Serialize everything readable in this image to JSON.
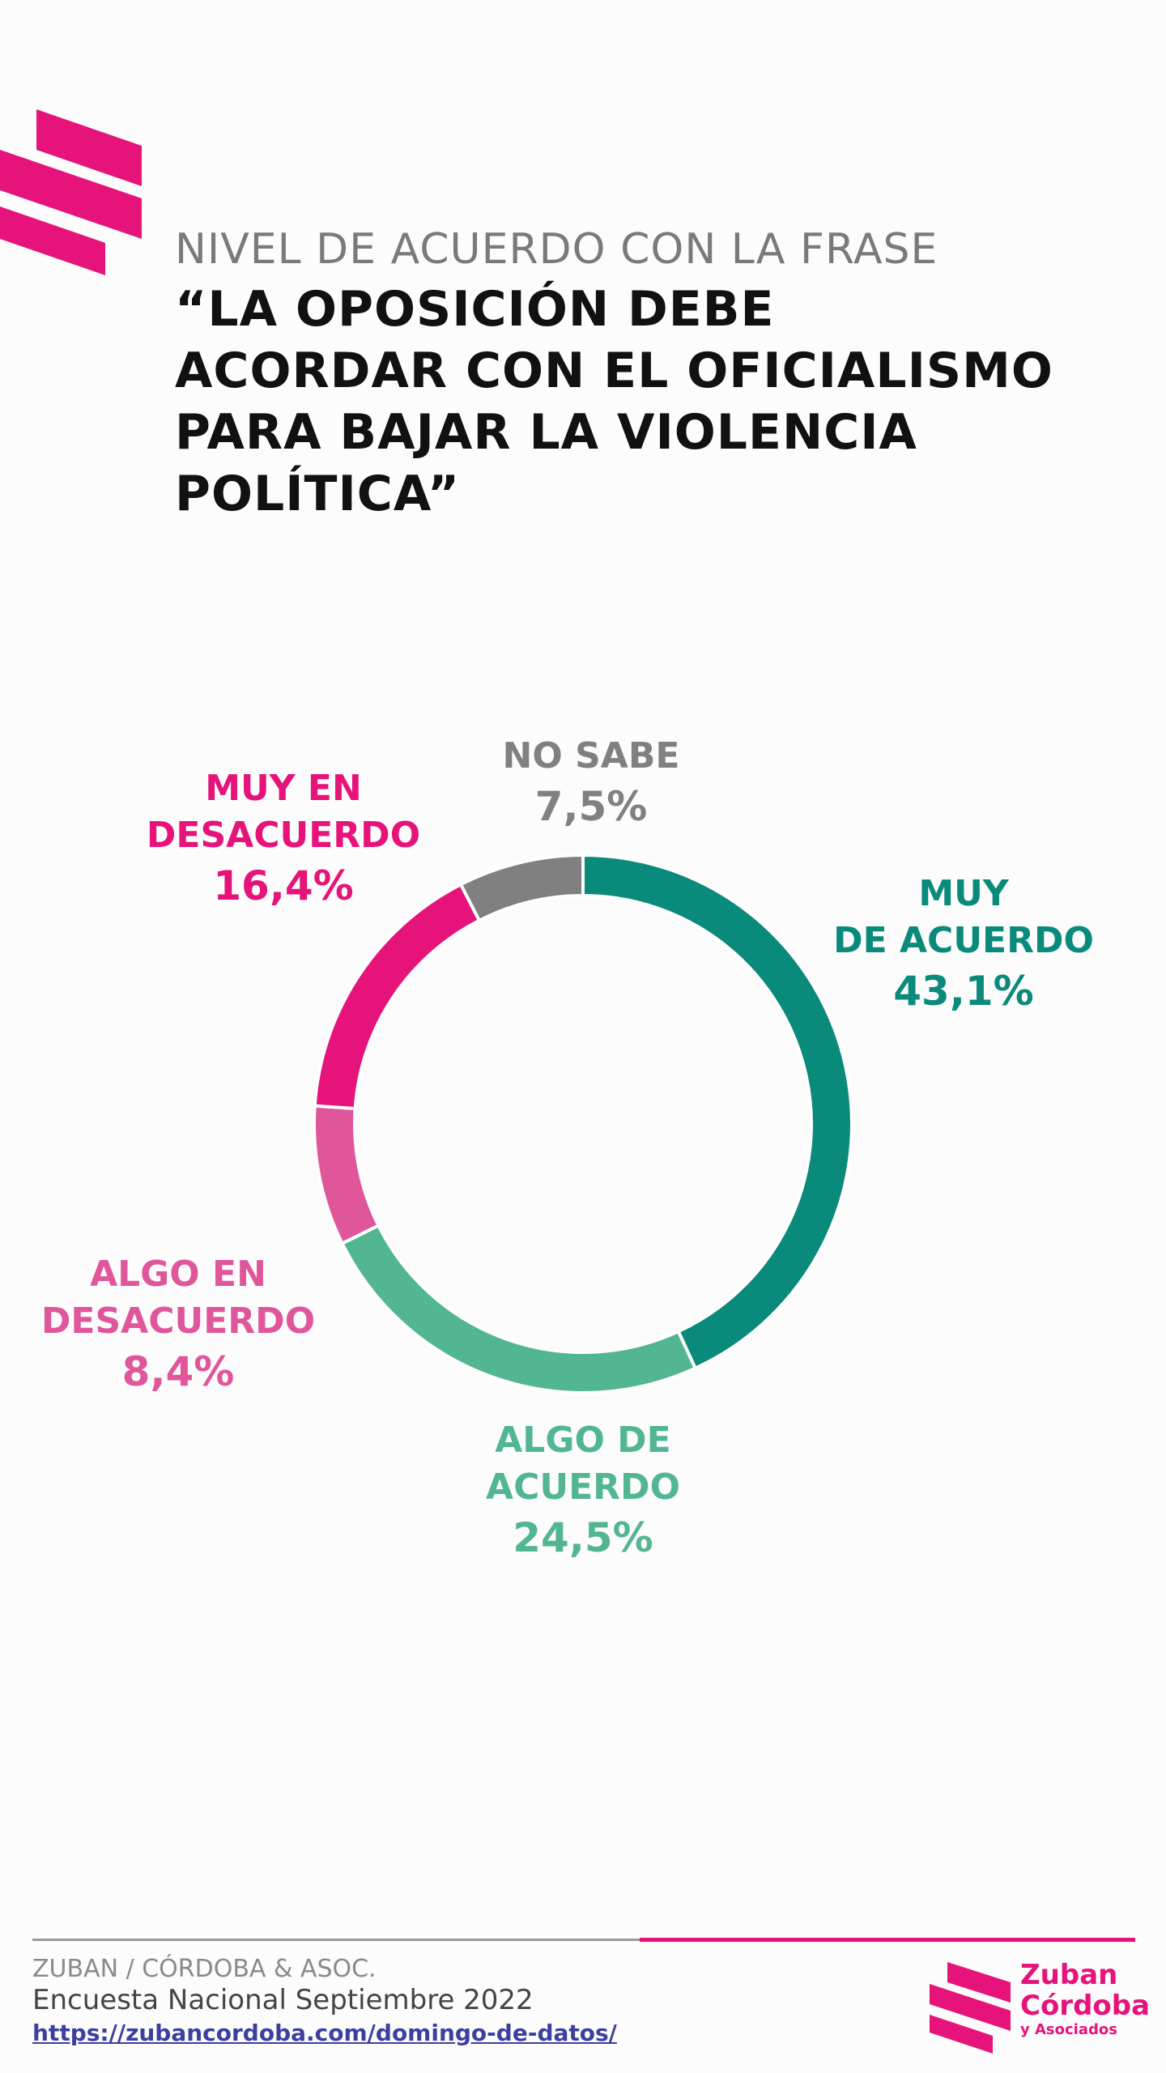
{
  "header": {
    "kicker": "NIVEL DE ACUERDO CON LA FRASE",
    "headline": "“LA OPOSICIÓN DEBE\nACORDAR CON EL OFICIALISMO\nPARA BAJAR LA VIOLENCIA\nPOLÍTICA”"
  },
  "chart_data": {
    "type": "pie",
    "variant": "donut",
    "unit": "%",
    "start_angle_deg": 0,
    "direction": "clockwise",
    "slices": [
      {
        "label": "MUY\nDE ACUERDO",
        "value": 43.1,
        "display": "43,1%",
        "color": "#0a8a7a"
      },
      {
        "label": "ALGO DE\nACUERDO",
        "value": 24.5,
        "display": "24,5%",
        "color": "#52b690"
      },
      {
        "label": "ALGO EN\nDESACUERDO",
        "value": 8.4,
        "display": "8,4%",
        "color": "#e0569b"
      },
      {
        "label": "MUY EN\nDESACUERDO",
        "value": 16.4,
        "display": "16,4%",
        "color": "#e6137a"
      },
      {
        "label": "NO SABE",
        "value": 7.5,
        "display": "7,5%",
        "color": "#808080"
      }
    ]
  },
  "footer": {
    "org": "ZUBAN / CÓRDOBA & ASOC.",
    "survey": "Encuesta Nacional Septiembre 2022",
    "url": "https://zubancordoba.com/domingo-de-datos/"
  },
  "brand": {
    "line1": "Zuban",
    "line2": "Córdoba",
    "line3": "y Asociados",
    "color": "#e6137a"
  }
}
